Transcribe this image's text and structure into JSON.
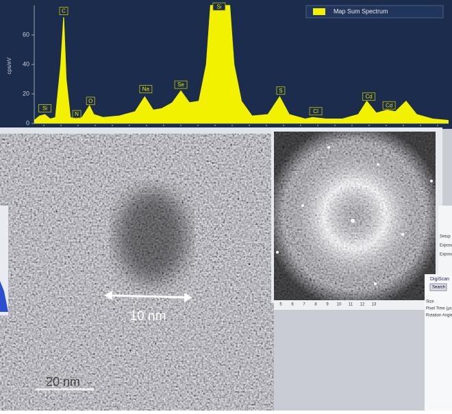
{
  "chart_data": {
    "type": "line",
    "y_label": "cps/eV",
    "x": [
      0.0,
      0.05,
      0.1,
      0.15,
      0.2,
      0.25,
      0.277,
      0.3,
      0.34,
      0.39,
      0.45,
      0.52,
      0.56,
      0.65,
      0.8,
      0.95,
      1.04,
      1.12,
      1.2,
      1.3,
      1.38,
      1.46,
      1.55,
      1.62,
      1.66,
      1.84,
      1.88,
      1.95,
      2.05,
      2.2,
      2.31,
      2.4,
      2.55,
      2.62,
      2.75,
      2.9,
      3.05,
      3.13,
      3.22,
      3.32,
      3.4,
      3.5,
      3.6,
      3.75,
      3.9
    ],
    "series": [
      {
        "name": "Map Sum Spectrum",
        "color": "#f2f200",
        "values": [
          2,
          5,
          6,
          3,
          4,
          40,
          72,
          30,
          4,
          3,
          4,
          12,
          6,
          4,
          5,
          8,
          18,
          9,
          10,
          14,
          22,
          14,
          15,
          40,
          80,
          80,
          40,
          15,
          5,
          6,
          18,
          6,
          3,
          4,
          3,
          3,
          6,
          15,
          7,
          9,
          8,
          15,
          6,
          3,
          2
        ]
      }
    ],
    "xlim": [
      0,
      3.9
    ],
    "ylim": [
      0,
      80
    ],
    "yticks": [
      0,
      20,
      40,
      60
    ],
    "legend": "top-right",
    "peak_labels": [
      {
        "text": "Si",
        "x": 0.1,
        "y": 10
      },
      {
        "text": "C",
        "x": 0.277,
        "y": 76
      },
      {
        "text": "N",
        "x": 0.4,
        "y": 6
      },
      {
        "text": "O",
        "x": 0.53,
        "y": 15
      },
      {
        "text": "Na",
        "x": 1.05,
        "y": 23
      },
      {
        "text": "Se",
        "x": 1.38,
        "y": 26
      },
      {
        "text": "Si",
        "x": 1.74,
        "y": 79
      },
      {
        "text": "S",
        "x": 2.32,
        "y": 22
      },
      {
        "text": "Cl",
        "x": 2.65,
        "y": 8
      },
      {
        "text": "Cd",
        "x": 3.15,
        "y": 18
      },
      {
        "text": "Cd",
        "x": 3.34,
        "y": 12
      }
    ]
  },
  "micrograph": {
    "scale_bar": "10 nm",
    "scale_text": "20 nm"
  },
  "fft_ticks": [
    "5",
    "6",
    "7",
    "8",
    "9",
    "10",
    "11",
    "12",
    "13"
  ],
  "panel": {
    "title": "DigiScan",
    "button": "Search",
    "fields": [
      "Setup",
      "Exposure",
      "Exposure",
      "Size",
      "Pixel Time (µs)",
      "Rotation Angle"
    ]
  }
}
